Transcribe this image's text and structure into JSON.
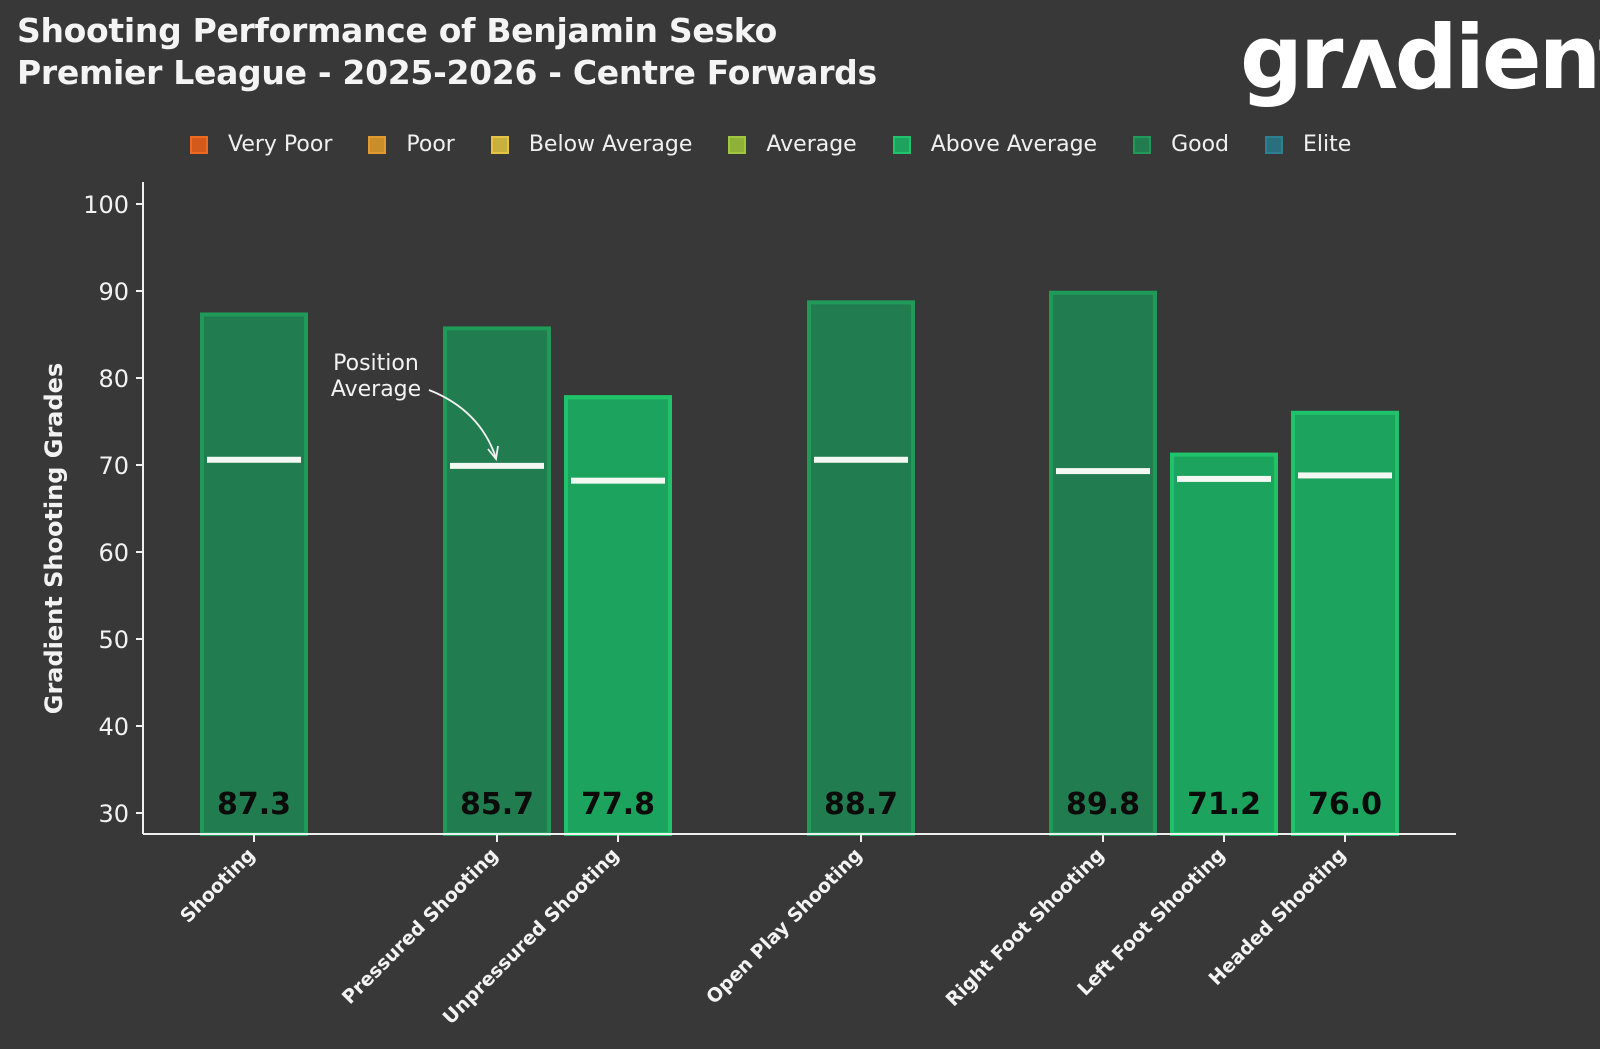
{
  "header": {
    "title_line1": "Shooting Performance of Benjamin Sesko",
    "title_line2": "Premier League - 2025-2026 - Centre Forwards",
    "logo_text": "grʌdient"
  },
  "legend": [
    {
      "label": "Very Poor",
      "fill": "#d35a1b",
      "stroke": "#f06a1e"
    },
    {
      "label": "Poor",
      "fill": "#c98d2a",
      "stroke": "#e09a2e"
    },
    {
      "label": "Below Average",
      "fill": "#c8b03e",
      "stroke": "#e6c443"
    },
    {
      "label": "Average",
      "fill": "#8fb13a",
      "stroke": "#a0c83f"
    },
    {
      "label": "Above Average",
      "fill": "#1ca35e",
      "stroke": "#1fc46a"
    },
    {
      "label": "Good",
      "fill": "#217d50",
      "stroke": "#1f9a58"
    },
    {
      "label": "Elite",
      "fill": "#2b6e7e",
      "stroke": "#2f7f92"
    }
  ],
  "annotation": {
    "line1": "Position",
    "line2": "Average"
  },
  "chart_data": {
    "type": "bar",
    "title": "Shooting Performance of Benjamin Sesko",
    "subtitle": "Premier League - 2025-2026 - Centre Forwards",
    "xlabel": "",
    "ylabel": "Gradient Shooting Grades",
    "ylim": [
      28,
      102
    ],
    "yticks": [
      30,
      40,
      50,
      60,
      70,
      80,
      90,
      100
    ],
    "grid": false,
    "legend_position": "top",
    "categories": [
      "Shooting",
      "Pressured Shooting",
      "Unpressured Shooting",
      "Open Play Shooting",
      "Right Foot Shooting",
      "Left Foot Shooting",
      "Headed Shooting"
    ],
    "groups": [
      [
        0
      ],
      [
        1,
        2
      ],
      [
        3
      ],
      [
        4,
        5,
        6
      ]
    ],
    "values": [
      87.3,
      85.7,
      77.8,
      88.7,
      89.8,
      71.2,
      76.0
    ],
    "value_labels": [
      "87.3",
      "85.7",
      "77.8",
      "88.7",
      "89.8",
      "71.2",
      "76.0"
    ],
    "ratings": [
      "Good",
      "Good",
      "Above Average",
      "Good",
      "Good",
      "Above Average",
      "Above Average"
    ],
    "position_average": [
      70.6,
      69.9,
      68.2,
      70.6,
      69.3,
      68.4,
      68.8
    ],
    "annotation": "Position Average"
  }
}
